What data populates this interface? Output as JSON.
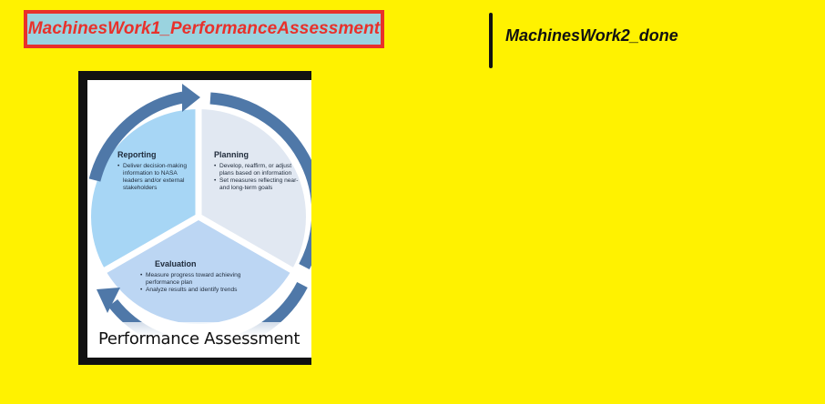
{
  "tabs": {
    "active_label": "MachinesWork1_PerformanceAssessment",
    "inactive_label": "MachinesWork2_done"
  },
  "figure": {
    "caption": "Performance Assessment",
    "segments": {
      "reporting": {
        "title": "Reporting",
        "bullets": [
          "Deliver decision-making information to NASA leaders and/or external stakeholders"
        ]
      },
      "planning": {
        "title": "Planning",
        "bullets": [
          "Develop, reaffirm, or adjust plans based on information",
          "Set measures reflecting near- and long-term goals"
        ]
      },
      "evaluation": {
        "title": "Evaluation",
        "bullets": [
          "Measure progress toward achieving performance plan",
          "Analyze results and identify trends"
        ]
      }
    }
  },
  "colors": {
    "background": "#fff200",
    "active_tab_fill": "#9ad3df",
    "active_tab_border": "#e8312b",
    "arrow": "#4f78a8",
    "reporting_fill": "#a7d6f5",
    "planning_fill": "#e1e8f2",
    "evaluation_fill": "#bcd6f3"
  }
}
